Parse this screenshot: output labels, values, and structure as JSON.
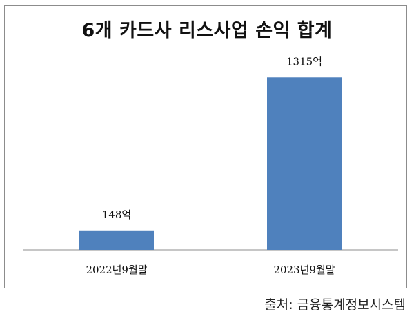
{
  "title": "6개 카드사 리스사업 손익 합계",
  "source": "출처: 금융통계정보시스템",
  "chart_data": {
    "type": "bar",
    "categories": [
      "2022년9월말",
      "2023년9월말"
    ],
    "values": [
      148,
      1315
    ],
    "data_labels": [
      "148억",
      "1315억"
    ],
    "unit": "억",
    "ylim": [
      0,
      1500
    ],
    "grid": false,
    "legend": "none",
    "bar_color": "#4f81bd"
  }
}
